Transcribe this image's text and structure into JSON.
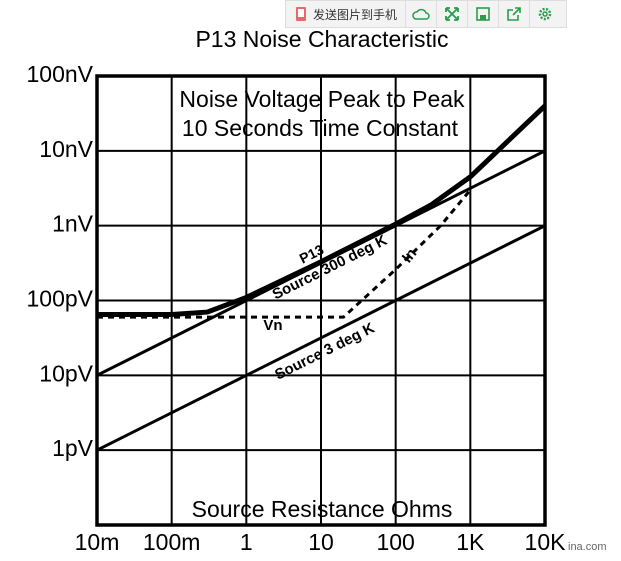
{
  "toolbar": {
    "button_label": "发送图片到手机"
  },
  "watermark": "ina.com",
  "chart_data": {
    "type": "line",
    "title": "P13 Noise Characteristic",
    "annotations": [
      "Noise Voltage Peak to Peak",
      "10 Seconds Time Constant",
      "In"
    ],
    "xlabel": "Source Resistance   Ohms",
    "xscale": "log",
    "yscale": "log",
    "grid": true,
    "xlim": [
      0.01,
      10000
    ],
    "ylim": [
      1e-13,
      1e-07
    ],
    "xticks": [
      {
        "value": 0.01,
        "label": "10m"
      },
      {
        "value": 0.1,
        "label": "100m"
      },
      1,
      10,
      100,
      {
        "value": 1000,
        "label": "1K"
      },
      {
        "value": 10000,
        "label": "10K"
      }
    ],
    "yticks": [
      {
        "value": 1e-12,
        "label": "1pV"
      },
      {
        "value": 1e-11,
        "label": "10pV"
      },
      {
        "value": 1e-10,
        "label": "100pV"
      },
      {
        "value": 1e-09,
        "label": "1nV"
      },
      {
        "value": 1e-08,
        "label": "10nV"
      },
      {
        "value": 1e-07,
        "label": "100nV"
      }
    ],
    "series": [
      {
        "name": "Source 300 deg K",
        "color": "#000000",
        "linewidth": 3,
        "line_style": "solid",
        "x": [
          0.01,
          10000
        ],
        "values": [
          1e-11,
          1e-08
        ]
      },
      {
        "name": "Source 3 deg K",
        "color": "#000000",
        "linewidth": 3,
        "line_style": "solid",
        "x": [
          0.01,
          10000
        ],
        "values": [
          1e-12,
          1e-09
        ]
      },
      {
        "name": "P13",
        "color": "#000000",
        "linewidth": 5,
        "line_style": "solid",
        "x": [
          0.01,
          0.1,
          0.3,
          1,
          10,
          100,
          300,
          1000,
          10000
        ],
        "values": [
          6.5e-11,
          6.5e-11,
          7e-11,
          1.1e-10,
          3.3e-10,
          1.05e-09,
          1.9e-09,
          4.5e-09,
          4e-08
        ]
      },
      {
        "name": "Vn",
        "color": "#000000",
        "linewidth": 3,
        "line_style": "dashed",
        "x": [
          0.01,
          20,
          100,
          400,
          1000
        ],
        "values": [
          6e-11,
          6e-11,
          2.6e-10,
          1e-09,
          3e-09
        ]
      }
    ]
  }
}
